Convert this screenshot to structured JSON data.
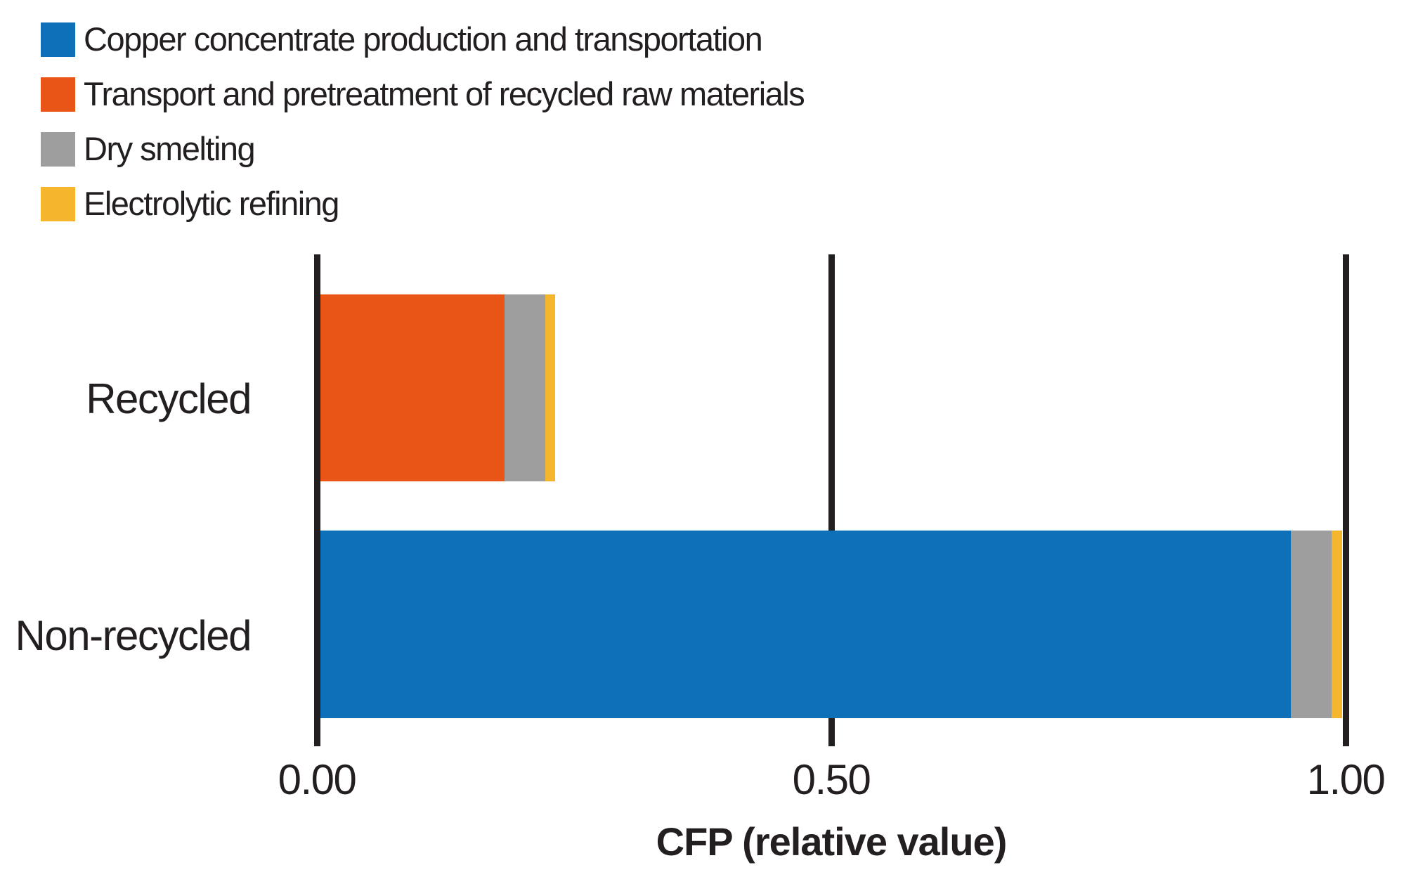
{
  "chart_data": {
    "type": "bar",
    "orientation": "horizontal",
    "stacked": true,
    "title": "",
    "xlabel": "CFP (relative value)",
    "ylabel": "",
    "xlim": [
      0,
      1.0
    ],
    "grid": "full-height vertical tick lines at each x tick",
    "legend_position": "top-left",
    "categories": [
      "Recycled",
      "Non-recycled"
    ],
    "series": [
      {
        "name": "Copper concentrate production and transportation",
        "color": "#0E70B9",
        "values": [
          0,
          0.95
        ]
      },
      {
        "name": "Transport and pretreatment of recycled raw materials",
        "color": "#E95517",
        "values": [
          0.18,
          0
        ]
      },
      {
        "name": "Dry smelting",
        "color": "#9E9E9E",
        "values": [
          0.04,
          0.04
        ]
      },
      {
        "name": "Electrolytic refining",
        "color": "#F5B62E",
        "values": [
          0.01,
          0.01
        ]
      }
    ],
    "category_totals": [
      0.23,
      1.0
    ],
    "x_ticks": [
      {
        "value": 0.0,
        "label": "0.00"
      },
      {
        "value": 0.5,
        "label": "0.50"
      },
      {
        "value": 1.0,
        "label": "1.00"
      }
    ]
  },
  "colors": {
    "background": "#FFFFFF",
    "text": "#231F20",
    "tick_line": "#231F20"
  }
}
